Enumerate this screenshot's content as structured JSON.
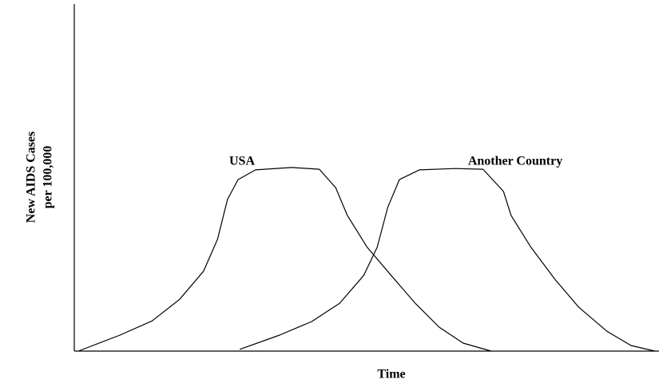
{
  "chart_data": {
    "type": "line",
    "x_label": "Time",
    "y_label": [
      "New AIDS Cases",
      "per 100,000"
    ],
    "xlim": [
      0,
      100
    ],
    "ylim": [
      0,
      100
    ],
    "series": [
      {
        "name": "USA",
        "color": "#000000",
        "x": [
          0.7,
          7.8,
          13.3,
          18.0,
          22.1,
          24.5,
          26.2,
          28.0,
          31.0,
          37.2,
          41.9,
          44.7,
          46.7,
          50.1,
          54.2,
          58.3,
          62.4,
          66.5,
          71.3
        ],
        "values": [
          0,
          4.6,
          8.7,
          14.9,
          23.0,
          32.2,
          43.7,
          49.4,
          52.2,
          52.9,
          52.4,
          47.1,
          39.1,
          29.9,
          21.8,
          13.8,
          6.9,
          2.3,
          0
        ]
      },
      {
        "name": "Another Country",
        "color": "#000000",
        "x": [
          28.3,
          35.1,
          40.6,
          45.4,
          49.5,
          51.8,
          53.6,
          55.6,
          59.0,
          65.2,
          69.9,
          73.4,
          74.7,
          78.1,
          82.2,
          86.3,
          91.1,
          95.2,
          99.3
        ],
        "values": [
          0.5,
          4.6,
          8.5,
          13.8,
          21.8,
          29.9,
          41.4,
          49.4,
          52.2,
          52.6,
          52.4,
          46.0,
          39.1,
          29.9,
          20.7,
          12.6,
          5.7,
          1.6,
          0
        ]
      }
    ]
  }
}
